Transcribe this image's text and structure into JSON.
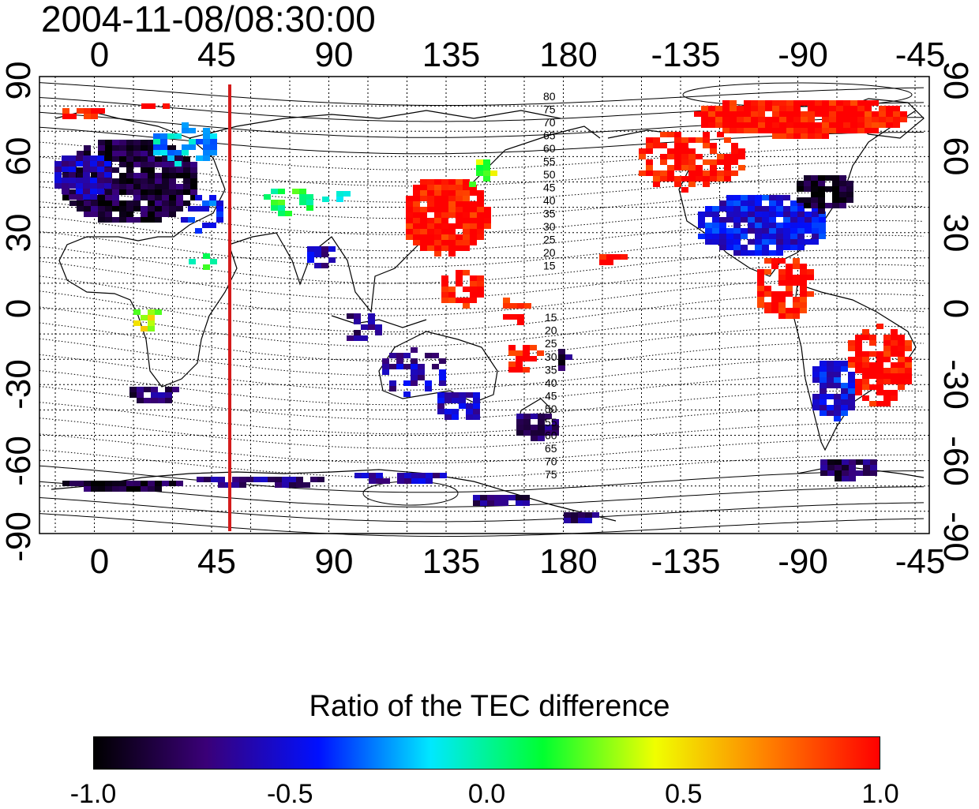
{
  "title": "2004-11-08/08:30:00",
  "map": {
    "top_ticks": [
      "0",
      "45",
      "90",
      "135",
      "180",
      "-135",
      "-90",
      "-45"
    ],
    "bottom_ticks": [
      "0",
      "45",
      "90",
      "135",
      "180",
      "-135",
      "-90",
      "-45"
    ],
    "left_ticks": [
      "90",
      "60",
      "30",
      "0",
      "-30",
      "-60",
      "-90"
    ],
    "right_ticks": [
      "90",
      "60",
      "30",
      "0",
      "-30",
      "-60",
      "-90"
    ],
    "marker_line_color": "#d41c1c",
    "contour_labels_north": [
      "80",
      "75",
      "70",
      "65",
      "60",
      "55",
      "50",
      "45",
      "40",
      "35",
      "30",
      "25",
      "20",
      "15"
    ],
    "contour_labels_south": [
      "15",
      "20",
      "25",
      "30",
      "35",
      "40",
      "45",
      "50",
      "55",
      "60",
      "65",
      "70",
      "75"
    ]
  },
  "colorbar": {
    "title": "Ratio of the TEC difference",
    "labels": [
      "-1.0",
      "-0.5",
      "0.0",
      "0.5",
      "1.0"
    ],
    "stops": [
      "#000000",
      "#3a0078",
      "#0010ff",
      "#00e8ff",
      "#00ff30",
      "#f0ff00",
      "#ff8000",
      "#ff0000"
    ]
  }
}
